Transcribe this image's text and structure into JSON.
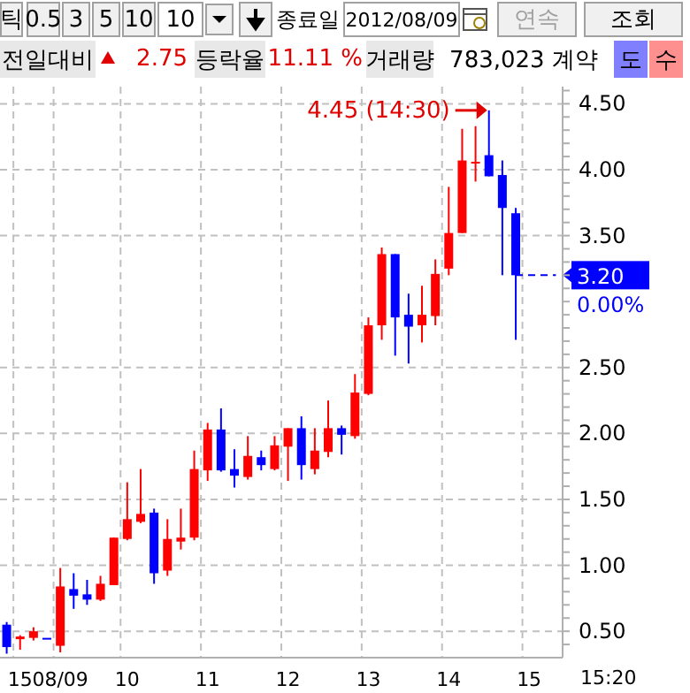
{
  "chart_data": {
    "type": "candlestick",
    "categories": [
      null,
      "15",
      null,
      null,
      "08/09",
      null,
      null,
      null,
      null,
      "10",
      null,
      null,
      null,
      null,
      null,
      "11",
      null,
      null,
      null,
      null,
      null,
      "12",
      null,
      null,
      null,
      null,
      null,
      "13",
      null,
      null,
      null,
      null,
      null,
      "14",
      null,
      null,
      null,
      null,
      null,
      "15",
      null,
      null
    ],
    "ohlc": [
      [
        0.55,
        0.57,
        0.33,
        0.38
      ],
      [
        0.44,
        0.47,
        0.36,
        0.46
      ],
      [
        0.45,
        0.53,
        0.43,
        0.5
      ],
      [
        0.45,
        0.45,
        0.45,
        0.45
      ],
      [
        0.39,
        0.98,
        0.34,
        0.84
      ],
      [
        0.82,
        0.94,
        0.67,
        0.77
      ],
      [
        0.78,
        0.89,
        0.7,
        0.74
      ],
      [
        0.74,
        0.92,
        0.73,
        0.86
      ],
      [
        0.85,
        1.21,
        0.85,
        1.21
      ],
      [
        1.2,
        1.63,
        1.19,
        1.35
      ],
      [
        1.33,
        1.73,
        1.32,
        1.39
      ],
      [
        1.4,
        1.43,
        0.86,
        0.94
      ],
      [
        0.96,
        1.35,
        0.92,
        1.2
      ],
      [
        1.18,
        1.43,
        1.12,
        1.21
      ],
      [
        1.21,
        1.87,
        1.19,
        1.73
      ],
      [
        1.72,
        2.08,
        1.64,
        2.03
      ],
      [
        2.03,
        2.19,
        1.71,
        1.72
      ],
      [
        1.73,
        1.88,
        1.59,
        1.68
      ],
      [
        1.67,
        1.98,
        1.65,
        1.83
      ],
      [
        1.82,
        1.87,
        1.72,
        1.76
      ],
      [
        1.73,
        1.98,
        1.72,
        1.91
      ],
      [
        1.9,
        2.04,
        1.64,
        2.04
      ],
      [
        2.04,
        2.13,
        1.65,
        1.76
      ],
      [
        1.73,
        2.04,
        1.69,
        1.87
      ],
      [
        1.86,
        2.25,
        1.82,
        2.04
      ],
      [
        2.04,
        2.06,
        1.84,
        1.99
      ],
      [
        1.98,
        2.45,
        1.96,
        2.31
      ],
      [
        2.3,
        2.88,
        2.29,
        2.82
      ],
      [
        2.82,
        3.41,
        2.71,
        3.36
      ],
      [
        3.36,
        3.36,
        2.59,
        2.88
      ],
      [
        2.9,
        3.06,
        2.53,
        2.81
      ],
      [
        2.82,
        3.12,
        2.69,
        2.9
      ],
      [
        2.89,
        3.32,
        2.82,
        3.21
      ],
      [
        3.25,
        3.87,
        3.2,
        3.52
      ],
      [
        3.52,
        4.31,
        3.52,
        4.07
      ],
      [
        4.05,
        4.33,
        3.91,
        4.06
      ],
      [
        4.11,
        4.45,
        3.95,
        3.95
      ],
      [
        3.96,
        4.07,
        3.2,
        3.71
      ],
      [
        3.67,
        3.71,
        2.71,
        3.2
      ],
      null,
      null,
      null
    ],
    "colors": [
      "#0000ff",
      "#ff0000",
      "#ff0000",
      "#0000ff",
      "#ff0000",
      "#0000ff",
      "#0000ff",
      "#ff0000",
      "#ff0000",
      "#ff0000",
      "#ff0000",
      "#0000ff",
      "#ff0000",
      "#ff0000",
      "#ff0000",
      "#ff0000",
      "#0000ff",
      "#0000ff",
      "#ff0000",
      "#0000ff",
      "#ff0000",
      "#ff0000",
      "#0000ff",
      "#ff0000",
      "#ff0000",
      "#0000ff",
      "#ff0000",
      "#ff0000",
      "#ff0000",
      "#0000ff",
      "#0000ff",
      "#ff0000",
      "#ff0000",
      "#ff0000",
      "#ff0000",
      "#ff0000",
      "#0000ff",
      "#0000ff",
      "#0000ff",
      null,
      null,
      null
    ],
    "ylim": [
      0.3,
      4.63
    ],
    "yticks": [
      {
        "value": 0.4,
        "label": null
      },
      {
        "value": 0.5,
        "label": "0.50"
      },
      {
        "value": 0.6,
        "label": null
      },
      {
        "value": 0.7,
        "label": null
      },
      {
        "value": 0.8,
        "label": null
      },
      {
        "value": 0.9,
        "label": null
      },
      {
        "value": 1.0,
        "label": "1.00"
      },
      {
        "value": 1.1,
        "label": null
      },
      {
        "value": 1.2,
        "label": null
      },
      {
        "value": 1.3,
        "label": null
      },
      {
        "value": 1.4,
        "label": null
      },
      {
        "value": 1.5,
        "label": "1.50"
      },
      {
        "value": 1.6,
        "label": null
      },
      {
        "value": 1.7,
        "label": null
      },
      {
        "value": 1.8,
        "label": null
      },
      {
        "value": 1.9,
        "label": null
      },
      {
        "value": 2.0,
        "label": "2.00"
      },
      {
        "value": 2.1,
        "label": null
      },
      {
        "value": 2.2,
        "label": null
      },
      {
        "value": 2.3,
        "label": null
      },
      {
        "value": 2.4,
        "label": null
      },
      {
        "value": 2.5,
        "label": "2.50"
      },
      {
        "value": 2.6,
        "label": null
      },
      {
        "value": 2.7,
        "label": null
      },
      {
        "value": 2.8,
        "label": null
      },
      {
        "value": 2.9,
        "label": null
      },
      {
        "value": 3.0,
        "label": null
      },
      {
        "value": 3.1,
        "label": null
      },
      {
        "value": 3.2,
        "label": null
      },
      {
        "value": 3.3,
        "label": null
      },
      {
        "value": 3.4,
        "label": null
      },
      {
        "value": 3.5,
        "label": "3.50"
      },
      {
        "value": 3.6,
        "label": null
      },
      {
        "value": 3.7,
        "label": null
      },
      {
        "value": 3.8,
        "label": null
      },
      {
        "value": 3.9,
        "label": null
      },
      {
        "value": 4.0,
        "label": "4.00"
      },
      {
        "value": 4.1,
        "label": null
      },
      {
        "value": 4.2,
        "label": null
      },
      {
        "value": 4.3,
        "label": null
      },
      {
        "value": 4.4,
        "label": null
      },
      {
        "value": 4.5,
        "label": "4.50"
      },
      {
        "value": 4.6,
        "label": null
      }
    ],
    "grid": true,
    "ref_lines": [
      {
        "axis": "y",
        "value": 3.2,
        "label": "3.20",
        "color": "#0000ff",
        "line_style": "dashed"
      }
    ],
    "annotations": [
      "틱",
      "0.5",
      "3",
      "5",
      "10",
      "10",
      "종료일",
      "2012/08/09",
      "연속",
      "조회",
      "전일대비",
      "2.75",
      "등락율",
      "11.11 %",
      "거래량",
      "783,023 계약",
      "도",
      "수",
      "0.00%",
      "4.45 (14:30)",
      "15:20"
    ]
  }
}
